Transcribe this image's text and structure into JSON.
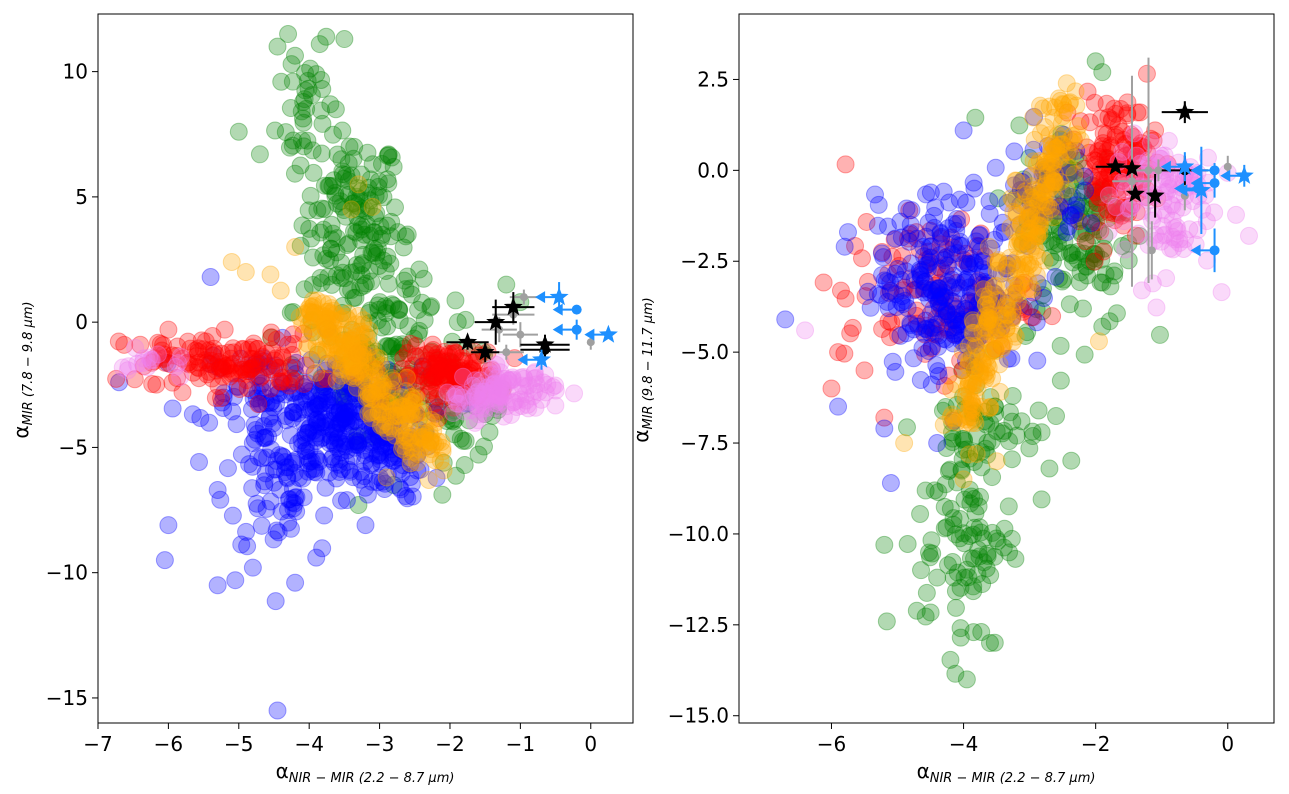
{
  "chart_data": [
    {
      "type": "scatter",
      "title": "",
      "xlabel": "α_{NIR−MIR (2.2−8.7 μm)}",
      "xlabel_main": "α",
      "xlabel_sub": "NIR − MIR (2.2 − 8.7 μm)",
      "ylabel": "α_{MIR (7.8−9.8 μm)}",
      "ylabel_main": "α",
      "ylabel_sub": "MIR (7.8 − 9.8 μm)",
      "xlim": [
        -7,
        0.6
      ],
      "ylim": [
        -16,
        12.3
      ],
      "xticks": [
        -7,
        -6,
        -5,
        -4,
        -3,
        -2,
        -1,
        0
      ],
      "xtick_labels": [
        "−7",
        "−6",
        "−5",
        "−4",
        "−3",
        "−2",
        "−1",
        "0"
      ],
      "yticks": [
        -15,
        -10,
        -5,
        0,
        5,
        10
      ],
      "ytick_labels": [
        "−15",
        "−10",
        "−5",
        "0",
        "5",
        "10"
      ],
      "grid": false,
      "series": [
        {
          "name": "green",
          "color": "#008000",
          "cloud": [
            [
              -3.4,
              4.0,
              0.35,
              1.8,
              140
            ],
            [
              -4.05,
              9.0,
              0.2,
              1.6,
              30
            ],
            [
              -2.8,
              -2.0,
              0.5,
              1.2,
              90
            ],
            [
              -1.8,
              -3.5,
              0.3,
              1.0,
              40
            ],
            [
              -3.0,
              0.5,
              0.6,
              1.5,
              60
            ]
          ],
          "extra": [
            [
              -5.0,
              7.6
            ],
            [
              -4.7,
              6.7
            ],
            [
              -2.8,
              6.2
            ],
            [
              -2.6,
              3.5
            ],
            [
              -1.2,
              1.5
            ],
            [
              -1.0,
              0.8
            ],
            [
              -2.8,
              -6.5
            ],
            [
              -3.3,
              -7.3
            ],
            [
              -4.45,
              11.0
            ],
            [
              -4.3,
              11.5
            ],
            [
              -3.85,
              11.1
            ],
            [
              -3.5,
              11.3
            ],
            [
              -3.9,
              9.9
            ],
            [
              -3.7,
              8.7
            ]
          ]
        },
        {
          "name": "blue",
          "color": "#0000ff",
          "cloud": [
            [
              -3.5,
              -4.2,
              0.55,
              1.2,
              260
            ],
            [
              -4.4,
              -6.0,
              0.4,
              1.8,
              80
            ],
            [
              -4.7,
              -2.5,
              0.5,
              0.8,
              60
            ],
            [
              -2.9,
              -5.3,
              0.25,
              0.9,
              60
            ]
          ],
          "extra": [
            [
              -6.7,
              -2.4
            ],
            [
              -5.4,
              1.8
            ],
            [
              -5.3,
              -10.5
            ],
            [
              -5.05,
              -10.3
            ],
            [
              -4.8,
              -9.8
            ],
            [
              -4.45,
              -15.5
            ],
            [
              -4.2,
              -10.4
            ],
            [
              -3.9,
              -9.4
            ],
            [
              -6.0,
              -8.1
            ],
            [
              -6.05,
              -9.5
            ],
            [
              -5.3,
              -6.7
            ],
            [
              -3.2,
              -8.1
            ]
          ]
        },
        {
          "name": "red",
          "color": "#ff0000",
          "cloud": [
            [
              -5.0,
              -1.7,
              0.55,
              0.6,
              120
            ],
            [
              -2.0,
              -2.1,
              0.35,
              0.55,
              140
            ],
            [
              -6.1,
              -1.4,
              0.3,
              0.5,
              20
            ]
          ],
          "extra": [
            [
              -6.4,
              -0.9
            ],
            [
              -6.0,
              -0.3
            ],
            [
              -5.2,
              -0.3
            ],
            [
              -5.8,
              -2.8
            ]
          ]
        },
        {
          "name": "violet",
          "color": "#ee82ee",
          "cloud": [
            [
              -1.2,
              -2.7,
              0.35,
              0.45,
              90
            ],
            [
              -6.2,
              -1.7,
              0.25,
              0.3,
              15
            ],
            [
              -1.6,
              -3.2,
              0.3,
              0.3,
              30
            ]
          ],
          "extra": [
            [
              -0.7,
              -3.1
            ],
            [
              -6.3,
              -1.8
            ]
          ]
        },
        {
          "name": "orange",
          "color": "#ffa500",
          "line": [
            [
              -3.95,
              0.5
            ],
            [
              -2.3,
              -5.2
            ]
          ],
          "line_n": 280,
          "line_spread": 0.18,
          "line_spread_y": 0.5,
          "extra": [
            [
              -3.4,
              4.5
            ],
            [
              -3.1,
              4.6
            ],
            [
              -4.2,
              3.0
            ],
            [
              -5.1,
              2.4
            ],
            [
              -4.55,
              1.9
            ],
            [
              -3.3,
              5.5
            ],
            [
              -4.9,
              2.0
            ],
            [
              -2.3,
              -6.3
            ],
            [
              -2.9,
              -6.2
            ]
          ]
        }
      ],
      "errorbar_points": {
        "black_stars": [
          {
            "x": -1.75,
            "y": -0.8,
            "xerr": 0.3,
            "yerr": 0.3
          },
          {
            "x": -1.5,
            "y": -1.2,
            "xerr": 0.2,
            "yerr": 0.4
          },
          {
            "x": -1.35,
            "y": 0.0,
            "xerr": 0.3,
            "yerr": 0.9
          },
          {
            "x": -1.1,
            "y": 0.6,
            "xerr": 0.3,
            "yerr": 0.6
          },
          {
            "x": -0.65,
            "y": -0.9,
            "xerr": 0.35,
            "yerr": 0.4
          }
        ],
        "black_dots": [
          {
            "x": -0.65,
            "y": -1.1,
            "xerr": 0.35,
            "yerr": 0.3
          }
        ],
        "grey_dots": [
          {
            "x": -1.3,
            "y": -0.3,
            "xerr": 0.25,
            "yerr": 0.5
          },
          {
            "x": -1.1,
            "y": 0.3,
            "xerr": 0.3,
            "yerr": 0.4
          },
          {
            "x": -1.0,
            "y": -0.5,
            "xerr": 0.25,
            "yerr": 0.5
          },
          {
            "x": -1.2,
            "y": -1.2,
            "xerr": 0.25,
            "yerr": 0.3
          },
          {
            "x": 0.0,
            "y": -0.8,
            "xerr": 0.0,
            "yerr": 0.3
          },
          {
            "x": -0.95,
            "y": 1.0,
            "xerr": 0.2,
            "yerr": 0.3
          }
        ],
        "blue_stars": [
          {
            "x": -0.45,
            "y": 1.0,
            "xerr": 0.0,
            "yerr": 0.6
          },
          {
            "x": 0.25,
            "y": -0.5,
            "xerr": 0.0,
            "yerr": 0.0
          },
          {
            "x": -0.7,
            "y": -1.5,
            "xerr": 0.0,
            "yerr": 0.4
          }
        ],
        "blue_dots": [
          {
            "x": -0.2,
            "y": 0.5,
            "xerr": 0.0,
            "yerr": 0.0
          },
          {
            "x": -0.2,
            "y": -0.3,
            "xerr": 0.0,
            "yerr": 0.4
          }
        ],
        "upper_limit_arrows": [
          {
            "x": -0.45,
            "y": 1.0
          },
          {
            "x": 0.25,
            "y": -0.5
          },
          {
            "x": -0.7,
            "y": -1.5
          },
          {
            "x": -0.2,
            "y": 0.5
          },
          {
            "x": -0.2,
            "y": -0.3
          }
        ]
      }
    },
    {
      "type": "scatter",
      "title": "",
      "xlabel": "α_{NIR−MIR (2.2−8.7 μm)}",
      "xlabel_main": "α",
      "xlabel_sub": "NIR − MIR (2.2 − 8.7 μm)",
      "ylabel": "α_{MIR (9.8−11.7 μm)}",
      "ylabel_main": "α",
      "ylabel_sub": "MIR (9.8 − 11.7 μm)",
      "xlim": [
        -7.4,
        0.7
      ],
      "ylim": [
        -15.2,
        4.3
      ],
      "xticks": [
        -6,
        -4,
        -2,
        0
      ],
      "xtick_labels": [
        "−6",
        "−4",
        "−2",
        "0"
      ],
      "yticks": [
        -15.0,
        -12.5,
        -10.0,
        -7.5,
        -5.0,
        -2.5,
        0.0,
        2.5
      ],
      "ytick_labels": [
        "−15.0",
        "−12.5",
        "−10.0",
        "−7.5",
        "−5.0",
        "−2.5",
        "0.0",
        "2.5"
      ],
      "grid": false,
      "series": [
        {
          "name": "green",
          "color": "#008000",
          "cloud": [
            [
              -4.0,
              -10.0,
              0.35,
              1.6,
              90
            ],
            [
              -2.3,
              -1.5,
              0.45,
              1.4,
              140
            ],
            [
              -3.6,
              -7.0,
              0.45,
              1.2,
              60
            ]
          ],
          "extra": [
            [
              -5.2,
              -10.3
            ],
            [
              -4.4,
              -11.2
            ],
            [
              -4.15,
              -11.2
            ],
            [
              -3.85,
              -12.7
            ],
            [
              -3.6,
              -13.0
            ],
            [
              -3.95,
              -14.0
            ],
            [
              -2.7,
              -8.2
            ],
            [
              -1.9,
              -4.3
            ],
            [
              -1.9,
              2.7
            ],
            [
              -2.0,
              3.0
            ]
          ]
        },
        {
          "name": "red",
          "color": "#ff0000",
          "cloud": [
            [
              -1.7,
              0.2,
              0.3,
              0.9,
              140
            ],
            [
              -4.4,
              -3.4,
              0.7,
              1.0,
              120
            ]
          ],
          "extra": [
            [
              -6.0,
              -6.0
            ],
            [
              -5.9,
              -5.0
            ],
            [
              -5.5,
              -5.5
            ],
            [
              -5.2,
              -6.8
            ],
            [
              -1.1,
              1.1
            ]
          ]
        },
        {
          "name": "violet",
          "color": "#ee82ee",
          "cloud": [
            [
              -1.0,
              -0.8,
              0.4,
              1.0,
              110
            ]
          ],
          "extra": [
            [
              -6.4,
              -4.4
            ],
            [
              -0.8,
              -1.9
            ],
            [
              -1.3,
              -3.3
            ]
          ]
        },
        {
          "name": "blue",
          "color": "#0000ff",
          "cloud": [
            [
              -4.2,
              -3.2,
              0.55,
              1.2,
              260
            ],
            [
              -2.8,
              -0.5,
              0.3,
              0.8,
              60
            ]
          ],
          "extra": [
            [
              -6.7,
              -4.1
            ],
            [
              -5.9,
              -6.5
            ],
            [
              -5.8,
              -2.1
            ],
            [
              -5.75,
              -1.7
            ],
            [
              -5.2,
              -7.1
            ],
            [
              -4.8,
              -1.5
            ],
            [
              -4.4,
              -7.5
            ],
            [
              -5.1,
              -8.6
            ]
          ]
        },
        {
          "name": "orange",
          "color": "#ffa500",
          "line": [
            [
              -4.0,
              -6.8
            ],
            [
              -2.4,
              1.8
            ]
          ],
          "line_n": 300,
          "line_spread": 0.14,
          "line_spread_y": 0.6,
          "extra": [
            [
              -4.3,
              -7.0
            ],
            [
              -4.9,
              -7.5
            ],
            [
              -3.8,
              -7.8
            ],
            [
              -4.0,
              -8.5
            ],
            [
              -3.5,
              -8.0
            ],
            [
              -1.95,
              -4.7
            ]
          ]
        }
      ],
      "errorbar_points": {
        "black_stars": [
          {
            "x": -0.65,
            "y": 1.6,
            "xerr": 0.35,
            "yerr": 0.3
          },
          {
            "x": -1.7,
            "y": 0.1,
            "xerr": 0.3,
            "yerr": 0.0
          },
          {
            "x": -1.45,
            "y": 0.05,
            "xerr": 0.0,
            "yerr": 0.0
          },
          {
            "x": -1.1,
            "y": -0.7,
            "xerr": 0.0,
            "yerr": 0.6
          },
          {
            "x": -1.4,
            "y": -0.65,
            "xerr": 0.0,
            "yerr": 0.0
          }
        ],
        "black_dots": [
          {
            "x": -0.65,
            "y": 0.0,
            "xerr": 0.35,
            "yerr": 0.4
          }
        ],
        "grey_dots": [
          {
            "x": -1.2,
            "y": 0.0,
            "xerr": 0.3,
            "yerr": 3.1
          },
          {
            "x": -1.45,
            "y": -0.3,
            "xerr": 0.3,
            "yerr": 2.9
          },
          {
            "x": -0.65,
            "y": 1.6,
            "xerr": 0.2,
            "yerr": 0.3
          },
          {
            "x": -1.15,
            "y": -2.2,
            "xerr": 0.0,
            "yerr": 0.8
          },
          {
            "x": -1.05,
            "y": 0.0,
            "xerr": 0.2,
            "yerr": 0.3
          },
          {
            "x": 0.0,
            "y": 0.1,
            "xerr": 0.0,
            "yerr": 0.3
          },
          {
            "x": -0.65,
            "y": -0.7,
            "xerr": 0.0,
            "yerr": 0.4
          }
        ],
        "blue_stars": [
          {
            "x": -0.65,
            "y": 0.1,
            "xerr": 0.0,
            "yerr": 0.4
          },
          {
            "x": -0.4,
            "y": -0.55,
            "xerr": 0.0,
            "yerr": 1.2
          },
          {
            "x": 0.25,
            "y": -0.15,
            "xerr": 0.0,
            "yerr": 0.3
          }
        ],
        "blue_dots": [
          {
            "x": -0.45,
            "y": -0.5,
            "xerr": 0.0,
            "yerr": 0.0
          },
          {
            "x": -0.2,
            "y": -0.35,
            "xerr": 0.0,
            "yerr": 0.4
          },
          {
            "x": -0.2,
            "y": -2.2,
            "xerr": 0.0,
            "yerr": 0.6
          },
          {
            "x": -0.2,
            "y": 0.0,
            "xerr": 0.0,
            "yerr": 0.2
          }
        ],
        "upper_limit_arrows": [
          {
            "x": -0.65,
            "y": 0.1
          },
          {
            "x": -0.4,
            "y": -0.55
          },
          {
            "x": 0.25,
            "y": -0.15
          },
          {
            "x": -0.45,
            "y": -0.5
          },
          {
            "x": -0.2,
            "y": -0.35
          },
          {
            "x": -0.2,
            "y": -2.2
          },
          {
            "x": -0.2,
            "y": 0.0
          }
        ]
      }
    }
  ]
}
